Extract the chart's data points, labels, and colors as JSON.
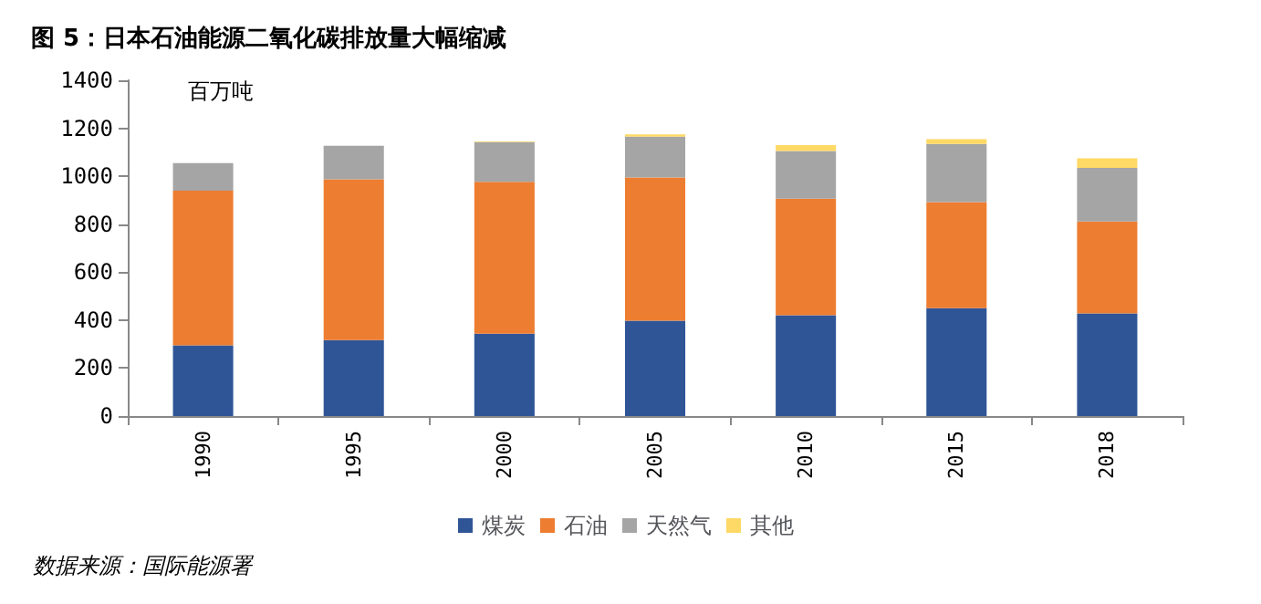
{
  "chart_data": {
    "type": "bar",
    "title": "图 5：日本石油能源二氧化碳排放量大幅缩减",
    "stacked": true,
    "categories": [
      "1990",
      "1995",
      "2000",
      "2005",
      "2010",
      "2015",
      "2018"
    ],
    "series": [
      {
        "name": "煤炭",
        "color": "#2f5597",
        "values": [
          295,
          317,
          343,
          398,
          420,
          450,
          428
        ]
      },
      {
        "name": "石油",
        "color": "#ed7d31",
        "values": [
          645,
          670,
          634,
          597,
          486,
          442,
          383
        ]
      },
      {
        "name": "天然气",
        "color": "#a5a5a5",
        "values": [
          115,
          140,
          165,
          170,
          199,
          243,
          224
        ]
      },
      {
        "name": "其他",
        "color": "#ffd966",
        "values": [
          0,
          0,
          3,
          10,
          25,
          20,
          40
        ]
      }
    ],
    "ylim": [
      0,
      1400
    ],
    "yticks": [
      0,
      200,
      400,
      600,
      800,
      1000,
      1200,
      1400
    ],
    "grid": false,
    "legend": "bottom",
    "annotations": [
      "百万吨",
      "数据来源：国际能源署"
    ]
  }
}
